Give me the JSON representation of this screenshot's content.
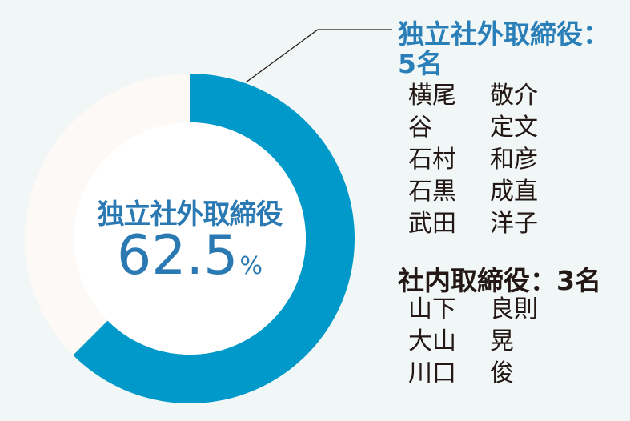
{
  "chart_data": {
    "type": "pie",
    "donut": true,
    "slices": [
      {
        "label": "独立社外取締役",
        "value": 62.5,
        "color": "#0099c9"
      },
      {
        "value": 37.5,
        "color": "#fdf9f6"
      }
    ],
    "center_label": "独立社外取締役",
    "center_value": "62.5",
    "center_unit": "%"
  },
  "colors": {
    "background": "#f1f7f6",
    "accent_text": "#2b79b2"
  },
  "independent": {
    "title_line1": "独立社外取締役：",
    "title_line2": "5名",
    "members": [
      {
        "family": "横尾",
        "given": "敬介"
      },
      {
        "family": "谷",
        "given": "定文"
      },
      {
        "family": "石村",
        "given": "和彦"
      },
      {
        "family": "石黒",
        "given": "成直"
      },
      {
        "family": "武田",
        "given": "洋子"
      }
    ]
  },
  "internal": {
    "title": "社内取締役：3名",
    "members": [
      {
        "family": "山下",
        "given": "良則"
      },
      {
        "family": "大山",
        "given": "晃"
      },
      {
        "family": "川口",
        "given": "俊"
      }
    ]
  }
}
